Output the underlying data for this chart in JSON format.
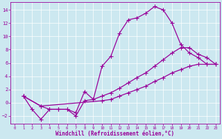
{
  "xlabel": "Windchill (Refroidissement éolien,°C)",
  "bg_color": "#cce8f0",
  "line_color": "#990099",
  "grid_color": "#aaccdd",
  "xlim": [
    -0.5,
    23.5
  ],
  "ylim": [
    -3.2,
    15.2
  ],
  "xticks": [
    0,
    1,
    2,
    3,
    4,
    5,
    6,
    7,
    8,
    9,
    10,
    11,
    12,
    13,
    14,
    15,
    16,
    17,
    18,
    19,
    20,
    21,
    22,
    23
  ],
  "yticks": [
    -2,
    0,
    2,
    4,
    6,
    8,
    10,
    12,
    14
  ],
  "line1_x": [
    1,
    2,
    3,
    4,
    5,
    6,
    7,
    8,
    9,
    10,
    11,
    12,
    13,
    14,
    15,
    16,
    17,
    18,
    19,
    20,
    21,
    22,
    23
  ],
  "line1_y": [
    1,
    -1,
    -2.5,
    -1,
    -1,
    -1,
    -1.5,
    1.7,
    0.5,
    5.5,
    7.0,
    10.5,
    12.5,
    12.8,
    13.5,
    14.5,
    14.0,
    12.0,
    8.8,
    7.5,
    6.8,
    5.8,
    5.8
  ],
  "line2_x": [
    1,
    3,
    4,
    5,
    6,
    7,
    8,
    9,
    10,
    11,
    12,
    13,
    14,
    15,
    16,
    17,
    18,
    19,
    20,
    21,
    22,
    23
  ],
  "line2_y": [
    1,
    -0.5,
    -1.0,
    -1.0,
    -1.0,
    -2.0,
    0.3,
    0.5,
    1.0,
    1.5,
    2.2,
    3.0,
    3.8,
    4.5,
    5.5,
    6.5,
    7.5,
    8.3,
    8.3,
    7.3,
    6.8,
    5.8
  ],
  "line3_x": [
    1,
    3,
    10,
    11,
    12,
    13,
    14,
    15,
    16,
    17,
    18,
    19,
    20,
    21,
    22,
    23
  ],
  "line3_y": [
    1,
    -0.5,
    0.3,
    0.5,
    1.0,
    1.5,
    2.0,
    2.5,
    3.2,
    3.8,
    4.5,
    5.0,
    5.5,
    5.8,
    5.8,
    5.8
  ],
  "markersize": 2.5,
  "linewidth": 0.9
}
